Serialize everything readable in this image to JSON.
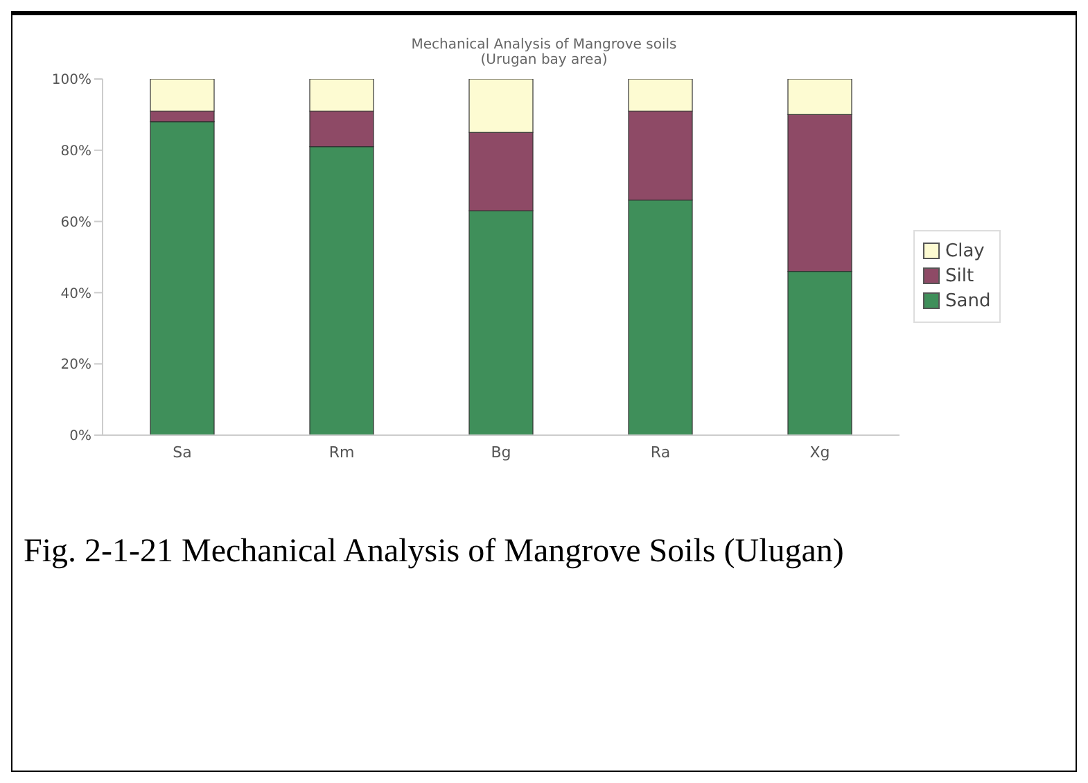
{
  "chart_data": {
    "type": "bar",
    "stacked": true,
    "title": "Mechanical Analysis of Mangrove soils",
    "subtitle": "(Urugan bay area)",
    "categories": [
      "Sa",
      "Rm",
      "Bg",
      "Ra",
      "Xg"
    ],
    "series": [
      {
        "name": "Sand",
        "color": "#3f8f5a",
        "values": [
          88,
          81,
          63,
          66,
          46
        ]
      },
      {
        "name": "Silt",
        "color": "#8e4a66",
        "values": [
          3,
          10,
          22,
          25,
          44
        ]
      },
      {
        "name": "Clay",
        "color": "#fdfbd2",
        "values": [
          9,
          9,
          15,
          9,
          10
        ]
      }
    ],
    "ylim": [
      0,
      100
    ],
    "yticks": [
      {
        "value": 0,
        "label": "0%"
      },
      {
        "value": 20,
        "label": "20%"
      },
      {
        "value": 40,
        "label": "40%"
      },
      {
        "value": 60,
        "label": "60%"
      },
      {
        "value": 80,
        "label": "80%"
      },
      {
        "value": 100,
        "label": "100%"
      }
    ],
    "grid": false,
    "legend": "right",
    "annotations": [
      "Fig. 2-1-21 Mechanical Analysis of Mangrove Soils (Ulugan)"
    ]
  }
}
